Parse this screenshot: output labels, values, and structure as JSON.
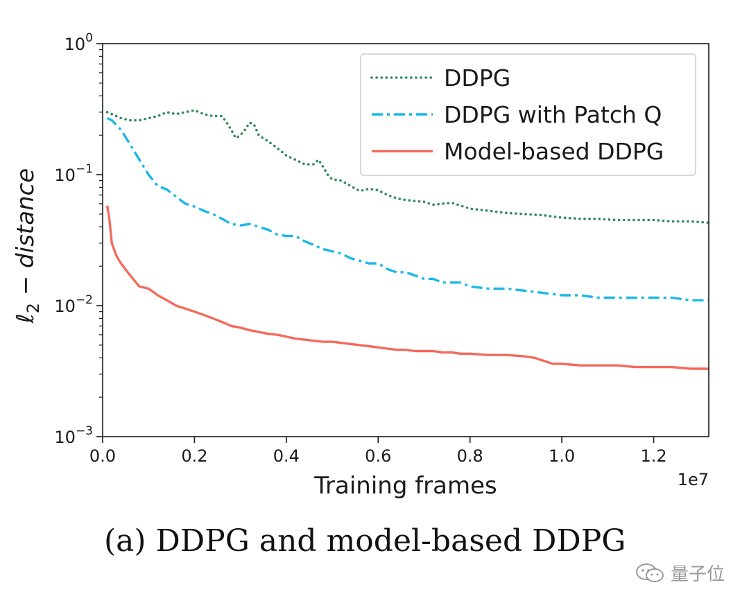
{
  "chart_data": {
    "type": "line",
    "xlabel": "Training frames",
    "ylabel_main": "ℓ",
    "ylabel_sub": "2",
    "ylabel_rest": " − distance",
    "x_scale_label": "1e7",
    "xlim": [
      0,
      1.32
    ],
    "ylim": [
      0.001,
      1
    ],
    "y_scale": "log",
    "x_ticks": [
      "0.0",
      "0.2",
      "0.4",
      "0.6",
      "0.8",
      "1.0",
      "1.2"
    ],
    "y_ticks": [
      {
        "base": "10",
        "exp": "0"
      },
      {
        "base": "10",
        "exp": "−1"
      },
      {
        "base": "10",
        "exp": "−2"
      },
      {
        "base": "10",
        "exp": "−3"
      }
    ],
    "legend_position": "top-right",
    "grid": false,
    "series": [
      {
        "name": "DDPG",
        "color": "#2e8b57",
        "style": "dotted",
        "x": [
          0.01,
          0.02,
          0.04,
          0.06,
          0.08,
          0.1,
          0.12,
          0.14,
          0.16,
          0.18,
          0.2,
          0.22,
          0.24,
          0.26,
          0.27,
          0.28,
          0.29,
          0.3,
          0.31,
          0.32,
          0.33,
          0.34,
          0.36,
          0.38,
          0.4,
          0.42,
          0.44,
          0.46,
          0.47,
          0.48,
          0.49,
          0.5,
          0.52,
          0.54,
          0.56,
          0.58,
          0.6,
          0.62,
          0.64,
          0.66,
          0.68,
          0.7,
          0.72,
          0.74,
          0.76,
          0.78,
          0.8,
          0.84,
          0.88,
          0.92,
          0.96,
          1.0,
          1.04,
          1.08,
          1.12,
          1.16,
          1.2,
          1.24,
          1.28,
          1.32
        ],
        "y": [
          0.3,
          0.29,
          0.27,
          0.26,
          0.26,
          0.27,
          0.28,
          0.3,
          0.29,
          0.3,
          0.31,
          0.29,
          0.28,
          0.28,
          0.25,
          0.22,
          0.19,
          0.2,
          0.22,
          0.25,
          0.24,
          0.2,
          0.18,
          0.16,
          0.14,
          0.13,
          0.12,
          0.12,
          0.13,
          0.115,
          0.1,
          0.092,
          0.09,
          0.082,
          0.075,
          0.078,
          0.076,
          0.07,
          0.066,
          0.064,
          0.063,
          0.062,
          0.059,
          0.06,
          0.061,
          0.058,
          0.055,
          0.053,
          0.051,
          0.05,
          0.049,
          0.047,
          0.046,
          0.046,
          0.045,
          0.045,
          0.045,
          0.044,
          0.044,
          0.043
        ]
      },
      {
        "name": "DDPG with Patch Q",
        "color": "#1ab8ea",
        "style": "dashdot",
        "x": [
          0.01,
          0.02,
          0.04,
          0.06,
          0.08,
          0.1,
          0.12,
          0.14,
          0.16,
          0.18,
          0.2,
          0.22,
          0.24,
          0.26,
          0.28,
          0.3,
          0.32,
          0.34,
          0.36,
          0.38,
          0.4,
          0.42,
          0.44,
          0.46,
          0.48,
          0.5,
          0.52,
          0.54,
          0.56,
          0.58,
          0.6,
          0.62,
          0.64,
          0.66,
          0.68,
          0.7,
          0.72,
          0.74,
          0.76,
          0.78,
          0.8,
          0.84,
          0.88,
          0.92,
          0.96,
          1.0,
          1.04,
          1.08,
          1.12,
          1.16,
          1.2,
          1.24,
          1.28,
          1.32
        ],
        "y": [
          0.27,
          0.26,
          0.22,
          0.17,
          0.13,
          0.1,
          0.082,
          0.077,
          0.068,
          0.06,
          0.057,
          0.053,
          0.05,
          0.046,
          0.042,
          0.041,
          0.042,
          0.04,
          0.038,
          0.035,
          0.034,
          0.034,
          0.031,
          0.029,
          0.027,
          0.026,
          0.025,
          0.023,
          0.022,
          0.021,
          0.021,
          0.019,
          0.018,
          0.018,
          0.017,
          0.016,
          0.016,
          0.015,
          0.015,
          0.015,
          0.014,
          0.0135,
          0.0135,
          0.013,
          0.0125,
          0.012,
          0.012,
          0.0115,
          0.0115,
          0.0115,
          0.0115,
          0.0115,
          0.011,
          0.011
        ]
      },
      {
        "name": "Model-based DDPG",
        "color": "#f26b5b",
        "style": "solid",
        "x": [
          0.01,
          0.015,
          0.02,
          0.03,
          0.04,
          0.06,
          0.08,
          0.1,
          0.12,
          0.14,
          0.16,
          0.18,
          0.2,
          0.22,
          0.24,
          0.26,
          0.28,
          0.3,
          0.32,
          0.34,
          0.36,
          0.38,
          0.4,
          0.42,
          0.44,
          0.46,
          0.48,
          0.5,
          0.52,
          0.54,
          0.56,
          0.58,
          0.6,
          0.62,
          0.64,
          0.66,
          0.68,
          0.7,
          0.72,
          0.74,
          0.76,
          0.78,
          0.8,
          0.84,
          0.88,
          0.92,
          0.94,
          0.96,
          0.98,
          1.0,
          1.04,
          1.08,
          1.12,
          1.16,
          1.2,
          1.24,
          1.28,
          1.32
        ],
        "y": [
          0.058,
          0.045,
          0.03,
          0.024,
          0.021,
          0.017,
          0.014,
          0.0135,
          0.012,
          0.011,
          0.01,
          0.0095,
          0.009,
          0.0085,
          0.008,
          0.0075,
          0.007,
          0.0068,
          0.0065,
          0.0063,
          0.0061,
          0.006,
          0.0058,
          0.0056,
          0.0055,
          0.0054,
          0.0053,
          0.0053,
          0.0052,
          0.0051,
          0.005,
          0.0049,
          0.0048,
          0.0047,
          0.0046,
          0.0046,
          0.0045,
          0.0045,
          0.0045,
          0.0044,
          0.0044,
          0.0043,
          0.0043,
          0.0042,
          0.0042,
          0.0041,
          0.004,
          0.0038,
          0.0036,
          0.0036,
          0.0035,
          0.0035,
          0.0035,
          0.0034,
          0.0034,
          0.0034,
          0.0033,
          0.0033
        ]
      }
    ]
  },
  "caption": "(a) DDPG and model-based DDPG",
  "watermark": "量子位"
}
